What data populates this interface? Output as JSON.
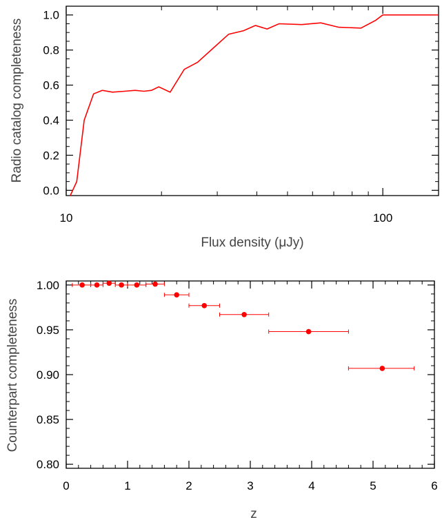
{
  "chart_data": [
    {
      "type": "line",
      "xscale": "log",
      "xlabel": "Flux density (μJy)",
      "ylabel": "Radio catalog completeness",
      "xlim": [
        10,
        150
      ],
      "ylim": [
        -0.03,
        1.05
      ],
      "xticks": [
        10,
        100
      ],
      "xtick_labels": [
        "10",
        "100"
      ],
      "yticks": [
        0.0,
        0.2,
        0.4,
        0.6,
        0.8,
        1.0
      ],
      "ytick_labels": [
        "0.0",
        "0.2",
        "0.4",
        "0.6",
        "0.8",
        "1.0"
      ],
      "grid": false,
      "color": "#ff0000",
      "series": [
        {
          "x": [
            10.3,
            10.8,
            11.4,
            12.2,
            13.0,
            14.0,
            15.3,
            16.5,
            17.6,
            18.6,
            19.6,
            21.3,
            23.6,
            26.0,
            29.5,
            32.6,
            36.3,
            39.6,
            43.1,
            47.0,
            55.5,
            63.7,
            72.6,
            85.3,
            95.0,
            100.0,
            110.0,
            150.0
          ],
          "y": [
            -0.03,
            0.05,
            0.4,
            0.55,
            0.57,
            0.56,
            0.565,
            0.57,
            0.565,
            0.57,
            0.59,
            0.56,
            0.69,
            0.73,
            0.82,
            0.89,
            0.91,
            0.94,
            0.92,
            0.95,
            0.945,
            0.955,
            0.93,
            0.925,
            0.97,
            1.0,
            1.0,
            1.0
          ]
        }
      ]
    },
    {
      "type": "scatter",
      "xlabel": "z",
      "ylabel": "Counterpart completeness",
      "xlim": [
        0,
        6
      ],
      "ylim": [
        0.7955,
        1.0045
      ],
      "xticks": [
        0,
        1,
        2,
        3,
        4,
        5,
        6
      ],
      "xtick_labels": [
        "0",
        "1",
        "2",
        "3",
        "4",
        "5",
        "6"
      ],
      "yticks": [
        0.8,
        0.85,
        0.9,
        0.95,
        1.0
      ],
      "ytick_labels": [
        "0.80",
        "0.85",
        "0.90",
        "0.95",
        "1.00"
      ],
      "grid": false,
      "color": "#ff0000",
      "points": [
        {
          "x": 0.26,
          "y": 1.0,
          "xerr": [
            0.1,
            0.4
          ]
        },
        {
          "x": 0.5,
          "y": 1.0,
          "xerr": [
            0.4,
            0.6
          ]
        },
        {
          "x": 0.7,
          "y": 1.002,
          "xerr": [
            0.6,
            0.8
          ]
        },
        {
          "x": 0.9,
          "y": 1.0,
          "xerr": [
            0.8,
            1.0
          ]
        },
        {
          "x": 1.15,
          "y": 1.0,
          "xerr": [
            1.0,
            1.3
          ]
        },
        {
          "x": 1.45,
          "y": 1.001,
          "xerr": [
            1.3,
            1.6
          ]
        },
        {
          "x": 1.8,
          "y": 0.989,
          "xerr": [
            1.6,
            2.0
          ]
        },
        {
          "x": 2.25,
          "y": 0.977,
          "xerr": [
            2.0,
            2.5
          ]
        },
        {
          "x": 2.9,
          "y": 0.967,
          "xerr": [
            2.5,
            3.3
          ]
        },
        {
          "x": 3.95,
          "y": 0.948,
          "xerr": [
            3.3,
            4.6
          ]
        },
        {
          "x": 5.15,
          "y": 0.907,
          "xerr": [
            4.6,
            5.67
          ]
        }
      ]
    }
  ]
}
